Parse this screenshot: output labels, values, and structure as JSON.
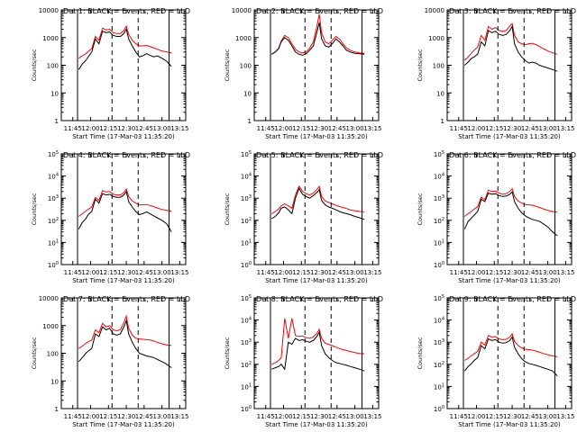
{
  "figure": {
    "xticks": [
      "11:45",
      "12:00",
      "12:15",
      "12:30",
      "12:45",
      "13:00",
      "13:15"
    ],
    "xlabel": "Start Time (17-Mar-03 11:35:20)",
    "ylabel": "Counts/sec",
    "colors": {
      "events": "#000000",
      "lld": "#ff0000",
      "axes": "#000000"
    }
  },
  "chart_data": [
    {
      "type": "line",
      "title": "Det 1: BLACK = Events, RED = LLD",
      "ylabel": "Counts/sec",
      "xlabel": "Start Time (17-Mar-03 11:35:20)",
      "yscale": "log",
      "ylim": [
        1,
        10000
      ],
      "ytick_labels": [
        "1",
        "10",
        "100",
        "1000",
        "10000"
      ],
      "xticks": [
        "11:45",
        "12:00",
        "12:15",
        "12:30",
        "12:45",
        "13:00",
        "13:15"
      ],
      "x": [
        "11:50",
        "11:53",
        "11:56",
        "11:58",
        "12:01",
        "12:04",
        "12:07",
        "12:10",
        "12:13",
        "12:16",
        "12:19",
        "12:22",
        "12:25",
        "12:28",
        "12:30",
        "12:32",
        "12:35",
        "12:38",
        "12:41",
        "12:44",
        "12:47",
        "12:50",
        "12:53",
        "12:56",
        "13:00",
        "13:04",
        "13:08"
      ],
      "series": [
        {
          "name": "Events",
          "values": [
            70,
            110,
            150,
            200,
            300,
            900,
            600,
            1700,
            1500,
            1600,
            1200,
            1100,
            1100,
            1400,
            2000,
            900,
            500,
            300,
            200,
            220,
            260,
            230,
            200,
            220,
            180,
            140,
            90
          ]
        },
        {
          "name": "LLD",
          "values": [
            180,
            220,
            260,
            320,
            400,
            1100,
            800,
            2200,
            1900,
            2000,
            1500,
            1400,
            1400,
            1800,
            2600,
            1300,
            800,
            600,
            500,
            500,
            520,
            480,
            430,
            380,
            330,
            300,
            280
          ]
        }
      ]
    },
    {
      "type": "line",
      "title": "Det 2: BLACK = Events, RED = LLD",
      "ylabel": "Counts/sec",
      "xlabel": "Start Time (17-Mar-03 11:35:20)",
      "yscale": "log",
      "ylim": [
        1,
        10000
      ],
      "ytick_labels": [
        "1",
        "10",
        "100",
        "1000",
        "10000"
      ],
      "xticks": [
        "11:45",
        "12:00",
        "12:15",
        "12:30",
        "12:45",
        "13:00",
        "13:15"
      ],
      "x": [
        "11:50",
        "11:53",
        "11:56",
        "11:58",
        "12:01",
        "12:04",
        "12:07",
        "12:10",
        "12:13",
        "12:16",
        "12:19",
        "12:22",
        "12:25",
        "12:28",
        "12:30",
        "12:32",
        "12:35",
        "12:38",
        "12:41",
        "12:44",
        "12:47",
        "12:50",
        "12:53",
        "12:56",
        "13:00",
        "13:04",
        "13:08"
      ],
      "series": [
        {
          "name": "Events",
          "values": [
            250,
            300,
            400,
            700,
            1000,
            800,
            500,
            300,
            250,
            230,
            260,
            350,
            500,
            1500,
            3500,
            900,
            500,
            450,
            600,
            900,
            700,
            500,
            350,
            300,
            270,
            260,
            250
          ]
        },
        {
          "name": "LLD",
          "values": [
            250,
            300,
            420,
            750,
            1200,
            1000,
            600,
            380,
            300,
            280,
            300,
            420,
            700,
            2500,
            7000,
            1500,
            700,
            600,
            800,
            1100,
            900,
            600,
            420,
            350,
            300,
            280,
            270
          ]
        }
      ]
    },
    {
      "type": "line",
      "title": "Det 3: BLACK = Events, RED = LLD",
      "ylabel": "Counts/sec",
      "xlabel": "Start Time (17-Mar-03 11:35:20)",
      "yscale": "log",
      "ylim": [
        1,
        10000
      ],
      "ytick_labels": [
        "1",
        "10",
        "100",
        "1000",
        "10000"
      ],
      "xticks": [
        "11:45",
        "12:00",
        "12:15",
        "12:30",
        "12:45",
        "13:00",
        "13:15"
      ],
      "x": [
        "11:50",
        "11:53",
        "11:56",
        "11:58",
        "12:01",
        "12:04",
        "12:07",
        "12:10",
        "12:13",
        "12:16",
        "12:19",
        "12:22",
        "12:25",
        "12:28",
        "12:30",
        "12:32",
        "12:35",
        "12:38",
        "12:41",
        "12:44",
        "12:47",
        "12:50",
        "12:53",
        "12:56",
        "13:00",
        "13:04",
        "13:08"
      ],
      "series": [
        {
          "name": "Events",
          "values": [
            100,
            130,
            180,
            200,
            250,
            700,
            500,
            1800,
            1500,
            1700,
            1300,
            1200,
            1300,
            1800,
            2500,
            600,
            300,
            200,
            150,
            120,
            130,
            120,
            100,
            90,
            80,
            70,
            60
          ]
        },
        {
          "name": "LLD",
          "values": [
            150,
            200,
            280,
            350,
            450,
            1200,
            800,
            2500,
            2000,
            2300,
            1800,
            1700,
            1800,
            2600,
            3200,
            1200,
            700,
            600,
            550,
            600,
            620,
            560,
            480,
            400,
            330,
            280,
            250
          ]
        }
      ]
    },
    {
      "type": "line",
      "title": "Det 4: BLACK = Events, RED = LLD",
      "ylabel": "Counts/sec",
      "xlabel": "Start Time (17-Mar-03 11:35:20)",
      "yscale": "log",
      "ylim": [
        1,
        100000
      ],
      "ytick_labels": [
        "10^0",
        "10^1",
        "10^2",
        "10^3",
        "10^4",
        "10^5"
      ],
      "xticks": [
        "11:45",
        "12:00",
        "12:15",
        "12:30",
        "12:45",
        "13:00",
        "13:15"
      ],
      "x": [
        "11:50",
        "11:53",
        "11:56",
        "11:58",
        "12:01",
        "12:04",
        "12:07",
        "12:10",
        "12:13",
        "12:16",
        "12:19",
        "12:22",
        "12:25",
        "12:28",
        "12:30",
        "12:32",
        "12:35",
        "12:38",
        "12:41",
        "12:44",
        "12:47",
        "12:50",
        "12:53",
        "12:56",
        "13:00",
        "13:04",
        "13:08"
      ],
      "series": [
        {
          "name": "Events",
          "values": [
            40,
            80,
            120,
            180,
            250,
            900,
            600,
            1600,
            1400,
            1500,
            1200,
            1100,
            1100,
            1400,
            2000,
            700,
            400,
            250,
            180,
            200,
            240,
            200,
            160,
            130,
            100,
            70,
            30
          ]
        },
        {
          "name": "LLD",
          "values": [
            150,
            200,
            260,
            320,
            400,
            1100,
            800,
            2200,
            1900,
            2000,
            1500,
            1400,
            1400,
            1800,
            2600,
            1200,
            750,
            600,
            500,
            500,
            520,
            470,
            420,
            360,
            310,
            280,
            260
          ]
        }
      ]
    },
    {
      "type": "line",
      "title": "Det 5: BLACK = Events, RED = LLD",
      "ylabel": "Counts/sec",
      "xlabel": "Start Time (17-Mar-03 11:35:20)",
      "yscale": "log",
      "ylim": [
        1,
        100000
      ],
      "ytick_labels": [
        "10^0",
        "10^1",
        "10^2",
        "10^3",
        "10^4",
        "10^5"
      ],
      "xticks": [
        "11:45",
        "12:00",
        "12:15",
        "12:30",
        "12:45",
        "13:00",
        "13:15"
      ],
      "x": [
        "11:50",
        "11:53",
        "11:56",
        "11:58",
        "12:01",
        "12:04",
        "12:07",
        "12:10",
        "12:13",
        "12:16",
        "12:19",
        "12:22",
        "12:25",
        "12:28",
        "12:30",
        "12:32",
        "12:35",
        "12:38",
        "12:41",
        "12:44",
        "12:47",
        "12:50",
        "12:53",
        "12:56",
        "13:00",
        "13:04",
        "13:08"
      ],
      "series": [
        {
          "name": "Events",
          "values": [
            120,
            150,
            220,
            350,
            400,
            300,
            200,
            1000,
            2800,
            1500,
            1200,
            1000,
            1300,
            1800,
            2400,
            800,
            500,
            400,
            350,
            300,
            250,
            220,
            200,
            180,
            150,
            130,
            110
          ]
        },
        {
          "name": "LLD",
          "values": [
            200,
            250,
            330,
            450,
            550,
            450,
            350,
            1400,
            3500,
            2000,
            1600,
            1400,
            1700,
            2400,
            3400,
            1200,
            750,
            650,
            550,
            480,
            420,
            380,
            340,
            300,
            270,
            250,
            240
          ]
        }
      ]
    },
    {
      "type": "line",
      "title": "Det 6: BLACK = Events, RED = LLD",
      "ylabel": "Counts/sec",
      "xlabel": "Start Time (17-Mar-03 11:35:20)",
      "yscale": "log",
      "ylim": [
        1,
        100000
      ],
      "ytick_labels": [
        "10^0",
        "10^1",
        "10^2",
        "10^3",
        "10^4",
        "10^5"
      ],
      "xticks": [
        "11:45",
        "12:00",
        "12:15",
        "12:30",
        "12:45",
        "13:00",
        "13:15"
      ],
      "x": [
        "11:50",
        "11:53",
        "11:56",
        "11:58",
        "12:01",
        "12:04",
        "12:07",
        "12:10",
        "12:13",
        "12:16",
        "12:19",
        "12:22",
        "12:25",
        "12:28",
        "12:30",
        "12:32",
        "12:35",
        "12:38",
        "12:41",
        "12:44",
        "12:47",
        "12:50",
        "12:53",
        "12:56",
        "13:00",
        "13:04",
        "13:08"
      ],
      "series": [
        {
          "name": "Events",
          "values": [
            40,
            90,
            130,
            170,
            250,
            900,
            700,
            1700,
            1500,
            1600,
            1300,
            1200,
            1250,
            1500,
            1900,
            700,
            350,
            220,
            160,
            130,
            110,
            100,
            90,
            70,
            50,
            30,
            20
          ]
        },
        {
          "name": "LLD",
          "values": [
            150,
            200,
            260,
            320,
            420,
            1100,
            850,
            2300,
            2000,
            2100,
            1700,
            1500,
            1600,
            2000,
            2700,
            1200,
            750,
            600,
            520,
            500,
            480,
            430,
            380,
            330,
            280,
            250,
            230
          ]
        }
      ]
    },
    {
      "type": "line",
      "title": "Det 7: BLACK = Events, RED = LLD",
      "ylabel": "Counts/sec",
      "xlabel": "Start Time (17-Mar-03 11:35:20)",
      "yscale": "log",
      "ylim": [
        1,
        10000
      ],
      "ytick_labels": [
        "1",
        "10",
        "100",
        "1000",
        "10000"
      ],
      "xticks": [
        "11:45",
        "12:00",
        "12:15",
        "12:30",
        "12:45",
        "13:00",
        "13:15"
      ],
      "x": [
        "11:50",
        "11:53",
        "11:56",
        "11:58",
        "12:01",
        "12:04",
        "12:07",
        "12:10",
        "12:13",
        "12:16",
        "12:19",
        "12:22",
        "12:25",
        "12:28",
        "12:30",
        "12:32",
        "12:35",
        "12:38",
        "12:41",
        "12:44",
        "12:47",
        "12:50",
        "12:53",
        "12:56",
        "13:00",
        "13:04",
        "13:08"
      ],
      "series": [
        {
          "name": "Events",
          "values": [
            50,
            70,
            100,
            120,
            150,
            500,
            400,
            900,
            700,
            800,
            500,
            450,
            500,
            900,
            1500,
            500,
            250,
            150,
            100,
            90,
            80,
            75,
            70,
            60,
            50,
            40,
            30
          ]
        },
        {
          "name": "LLD",
          "values": [
            150,
            180,
            230,
            260,
            300,
            700,
            550,
            1200,
            900,
            1000,
            700,
            650,
            700,
            1300,
            2200,
            800,
            450,
            350,
            330,
            320,
            310,
            300,
            280,
            250,
            220,
            200,
            190
          ]
        }
      ]
    },
    {
      "type": "line",
      "title": "Det 8: BLACK = Events, RED = LLD",
      "ylabel": "Counts/sec",
      "xlabel": "Start Time (17-Mar-03 11:35:20)",
      "yscale": "log",
      "ylim": [
        1,
        100000
      ],
      "ytick_labels": [
        "10^0",
        "10^1",
        "10^2",
        "10^3",
        "10^4",
        "10^5"
      ],
      "xticks": [
        "11:45",
        "12:00",
        "12:15",
        "12:30",
        "12:45",
        "13:00",
        "13:15"
      ],
      "x": [
        "11:50",
        "11:53",
        "11:56",
        "11:58",
        "12:01",
        "12:04",
        "12:07",
        "12:10",
        "12:13",
        "12:16",
        "12:19",
        "12:22",
        "12:25",
        "12:28",
        "12:30",
        "12:32",
        "12:35",
        "12:38",
        "12:41",
        "12:44",
        "12:47",
        "12:50",
        "12:53",
        "12:56",
        "13:00",
        "13:04",
        "13:08"
      ],
      "series": [
        {
          "name": "Events",
          "values": [
            60,
            70,
            80,
            100,
            60,
            1000,
            800,
            1500,
            1200,
            1300,
            1100,
            1000,
            1200,
            1800,
            2800,
            700,
            300,
            200,
            150,
            120,
            110,
            100,
            90,
            80,
            70,
            60,
            50
          ]
        },
        {
          "name": "LLD",
          "values": [
            100,
            120,
            150,
            200,
            12000,
            1500,
            12000,
            2000,
            1800,
            1900,
            1600,
            1500,
            1700,
            2500,
            3800,
            1500,
            900,
            800,
            700,
            600,
            520,
            460,
            420,
            380,
            340,
            310,
            300
          ]
        }
      ]
    },
    {
      "type": "line",
      "title": "Det 9: BLACK = Events, RED = LLD",
      "ylabel": "Counts/sec",
      "xlabel": "Start Time (17-Mar-03 11:35:20)",
      "yscale": "log",
      "ylim": [
        1,
        100000
      ],
      "ytick_labels": [
        "10^0",
        "10^1",
        "10^2",
        "10^3",
        "10^4",
        "10^5"
      ],
      "xticks": [
        "11:45",
        "12:00",
        "12:15",
        "12:30",
        "12:45",
        "13:00",
        "13:15"
      ],
      "x": [
        "11:50",
        "11:53",
        "11:56",
        "11:58",
        "12:01",
        "12:04",
        "12:07",
        "12:10",
        "12:13",
        "12:16",
        "12:19",
        "12:22",
        "12:25",
        "12:28",
        "12:30",
        "12:32",
        "12:35",
        "12:38",
        "12:41",
        "12:44",
        "12:47",
        "12:50",
        "12:53",
        "12:56",
        "13:00",
        "13:04",
        "13:08"
      ],
      "series": [
        {
          "name": "Events",
          "values": [
            50,
            80,
            110,
            150,
            200,
            700,
            500,
            1400,
            1200,
            1300,
            1000,
            900,
            950,
            1200,
            1700,
            600,
            300,
            180,
            130,
            110,
            100,
            90,
            80,
            70,
            60,
            50,
            30
          ]
        },
        {
          "name": "LLD",
          "values": [
            150,
            190,
            250,
            300,
            380,
            1000,
            750,
            2000,
            1700,
            1800,
            1400,
            1300,
            1350,
            1700,
            2400,
            1100,
            700,
            560,
            480,
            460,
            440,
            400,
            350,
            310,
            270,
            240,
            220
          ]
        }
      ]
    }
  ]
}
